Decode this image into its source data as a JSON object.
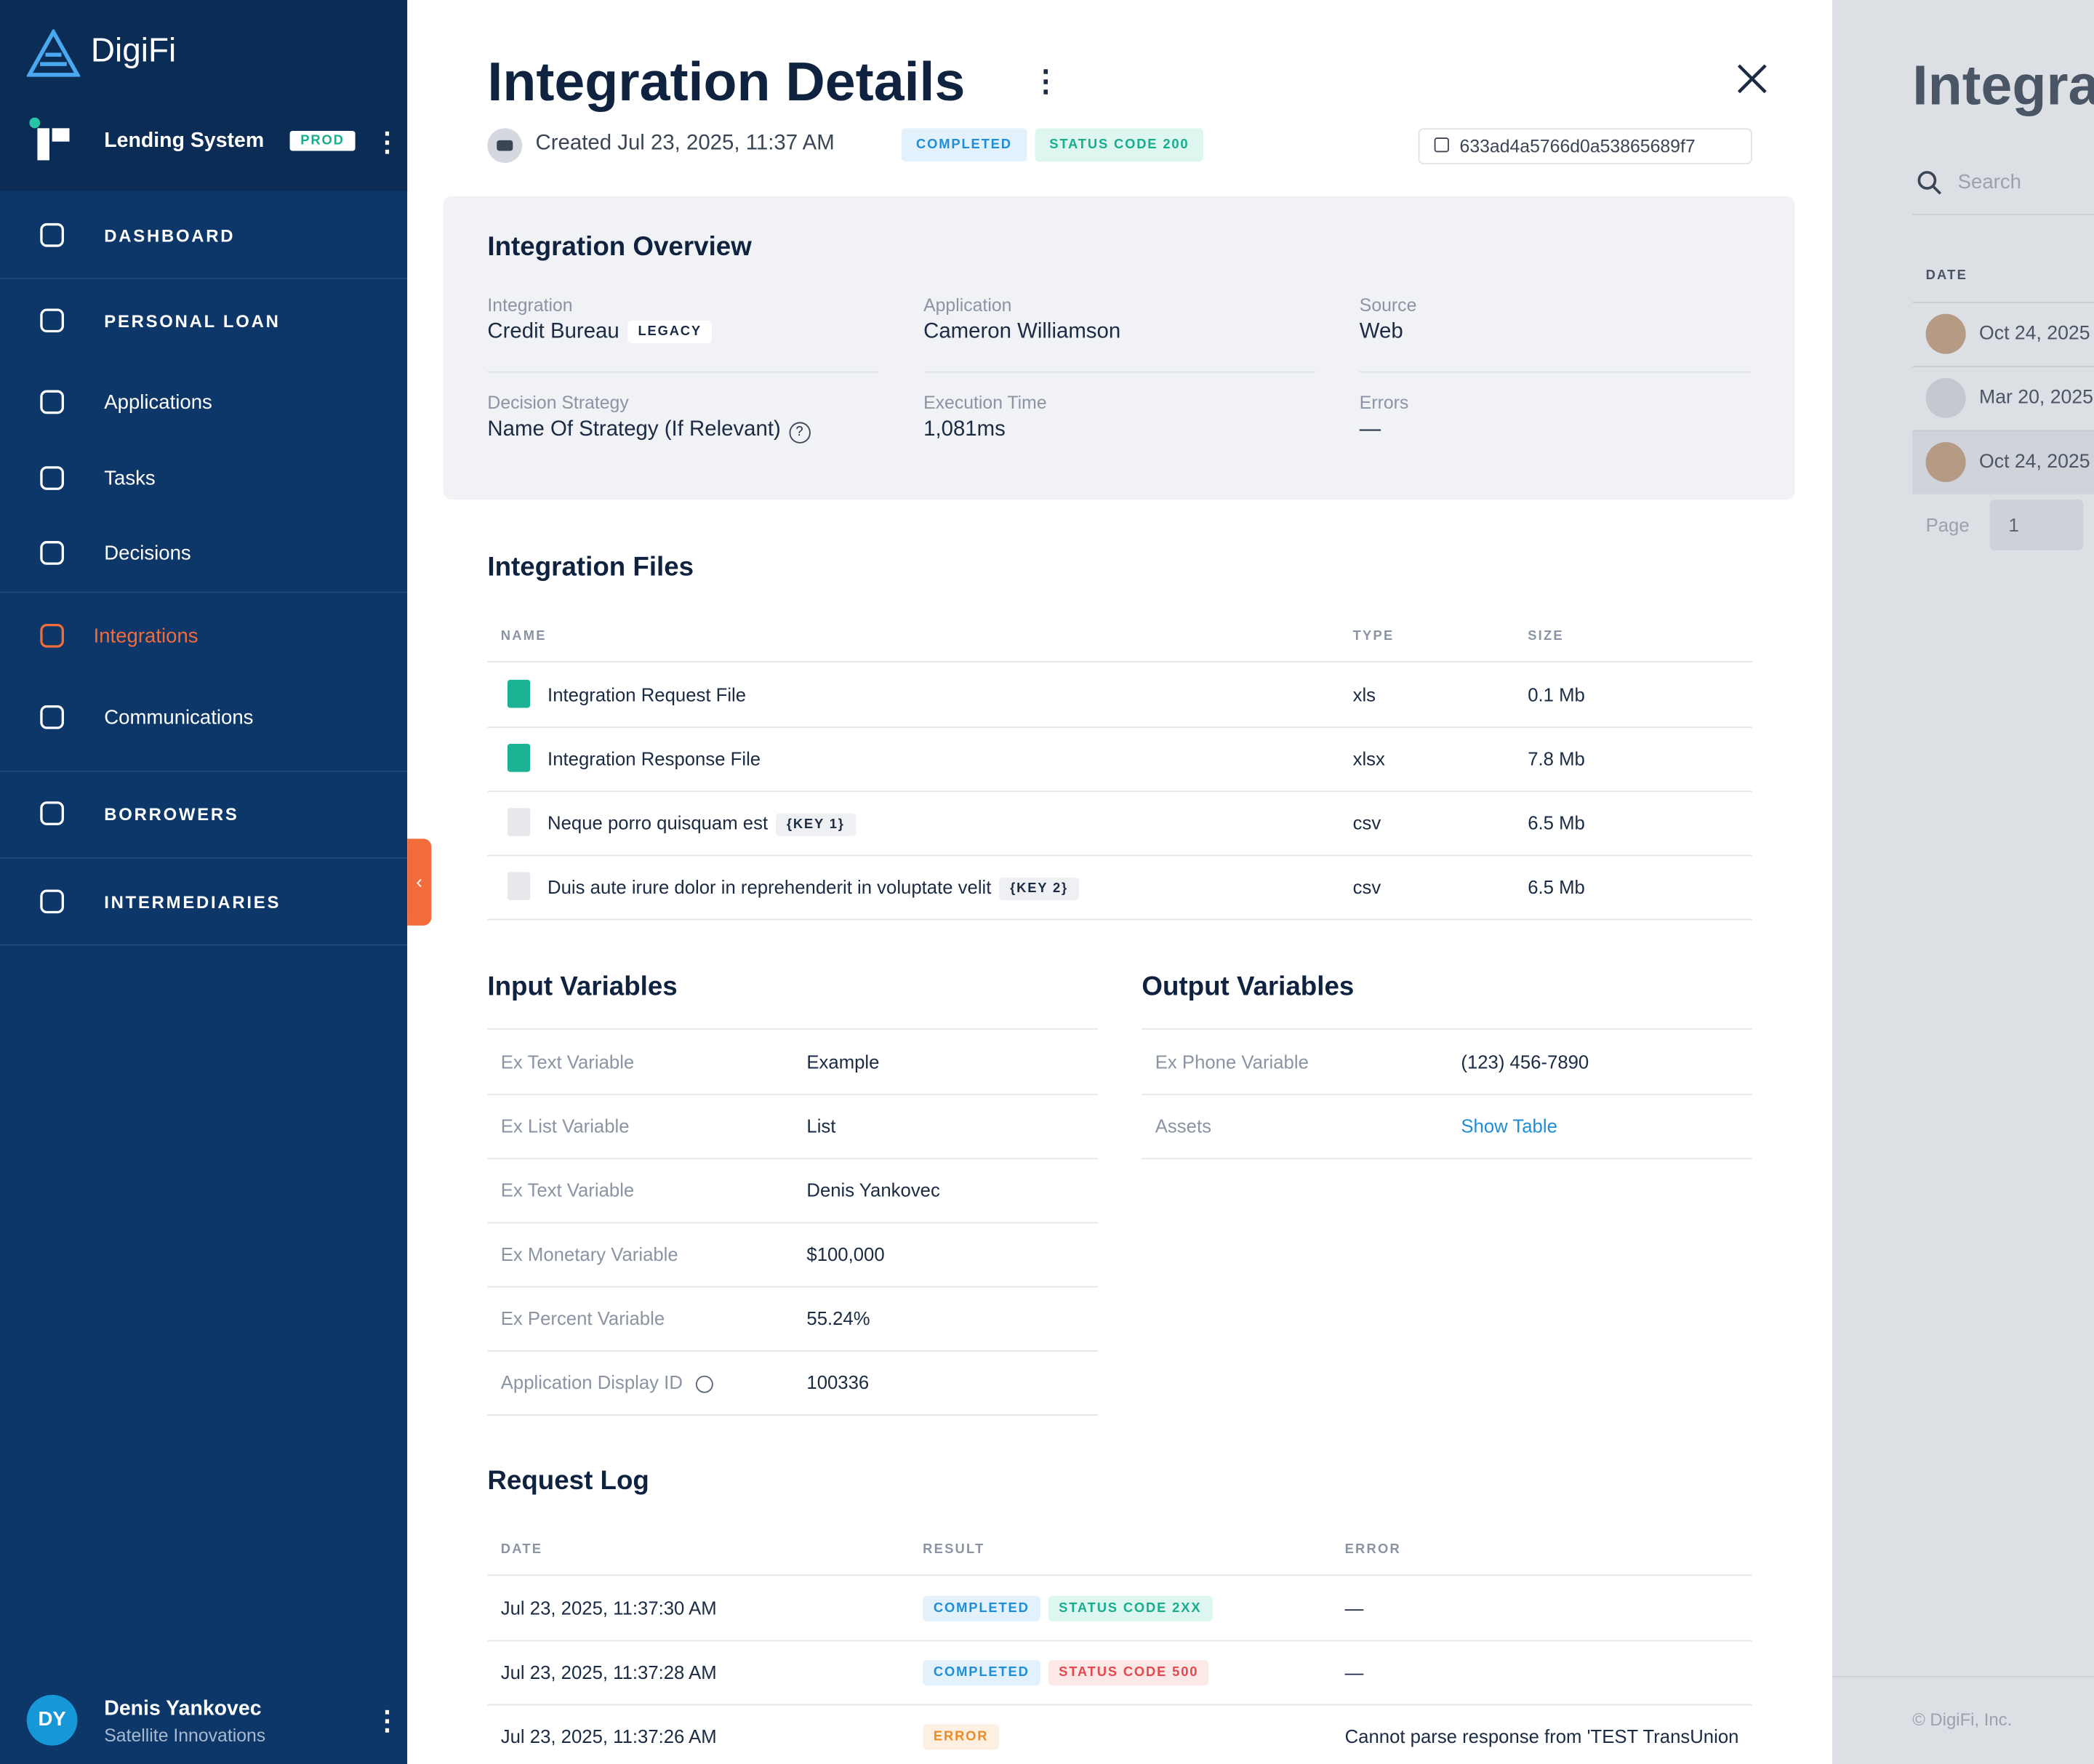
{
  "sidebar": {
    "brand": "DigiFi",
    "workspace": "Lending System",
    "env": "PROD",
    "nav": [
      {
        "label": "DASHBOARD"
      },
      {
        "label": "PERSONAL LOAN"
      },
      {
        "label": "Applications"
      },
      {
        "label": "Tasks"
      },
      {
        "label": "Decisions"
      },
      {
        "label": "Integrations",
        "active": true
      },
      {
        "label": "Communications"
      },
      {
        "label": "BORROWERS"
      },
      {
        "label": "INTERMEDIARIES"
      }
    ],
    "user": {
      "initials": "DY",
      "name": "Denis Yankovec",
      "company": "Satellite Innovations"
    }
  },
  "header": {
    "title": "Integration Details",
    "created": "Created Jul 23, 2025, 11:37 AM",
    "status": "COMPLETED",
    "status_code": "STATUS CODE 200",
    "id": "633ad4a5766d0a53865689f7"
  },
  "overview": {
    "title": "Integration Overview",
    "fields": [
      {
        "label": "Integration",
        "value": "Credit Bureau",
        "tag": "LEGACY"
      },
      {
        "label": "Application",
        "value": "Cameron Williamson"
      },
      {
        "label": "Source",
        "value": "Web"
      },
      {
        "label": "Decision Strategy",
        "value": "Name Of Strategy (If Relevant)"
      },
      {
        "label": "Execution Time",
        "value": "1,081ms"
      },
      {
        "label": "Errors",
        "value": "—"
      }
    ]
  },
  "files": {
    "title": "Integration Files",
    "columns": [
      "NAME",
      "TYPE",
      "SIZE"
    ],
    "rows": [
      {
        "name": "Integration Request File",
        "type": "xls",
        "size": "0.1 Mb",
        "sheet": true
      },
      {
        "name": "Integration Response File",
        "type": "xlsx",
        "size": "7.8 Mb",
        "sheet": true
      },
      {
        "name": "Neque porro quisquam est",
        "tag": "{KEY 1}",
        "type": "csv",
        "size": "6.5 Mb"
      },
      {
        "name": "Duis aute irure dolor in reprehenderit in voluptate velit",
        "tag": "{KEY 2}",
        "type": "csv",
        "size": "6.5 Mb"
      }
    ]
  },
  "input_variables": {
    "title": "Input Variables",
    "rows": [
      [
        "Ex Text Variable",
        "Example"
      ],
      [
        "Ex List Variable",
        "List"
      ],
      [
        "Ex Text Variable",
        "Denis Yankovec"
      ],
      [
        "Ex Monetary Variable",
        "$100,000"
      ],
      [
        "Ex Percent Variable",
        "55.24%"
      ],
      [
        "Application Display ID",
        "100336"
      ]
    ]
  },
  "output_variables": {
    "title": "Output Variables",
    "rows": [
      [
        "Ex Phone Variable",
        "(123) 456-7890"
      ],
      [
        "Assets",
        "Show Table"
      ]
    ]
  },
  "request_log": {
    "title": "Request Log",
    "columns": [
      "DATE",
      "RESULT",
      "ERROR"
    ],
    "rows": [
      {
        "date": "Jul 23, 2025, 11:37:30 AM",
        "badges": [
          {
            "text": "COMPLETED",
            "color": "blue"
          },
          {
            "text": "STATUS CODE 2XX",
            "color": "green"
          }
        ],
        "error": "—"
      },
      {
        "date": "Jul 23, 2025, 11:37:28 AM",
        "badges": [
          {
            "text": "COMPLETED",
            "color": "blue"
          },
          {
            "text": "STATUS CODE 500",
            "color": "red"
          }
        ],
        "error": "—"
      },
      {
        "date": "Jul 23, 2025, 11:37:26 AM",
        "badges": [
          {
            "text": "ERROR",
            "color": "orange"
          }
        ],
        "error": "Cannot parse response from 'TEST TransUnion"
      }
    ]
  },
  "background": {
    "title": "Integra",
    "search": "Search",
    "column": "DATE",
    "rows": [
      "Oct 24, 2025",
      "Mar 20, 2025",
      "Oct 24, 2025"
    ],
    "page_label": "Page",
    "page": "1",
    "footer": "© DigiFi, Inc."
  }
}
